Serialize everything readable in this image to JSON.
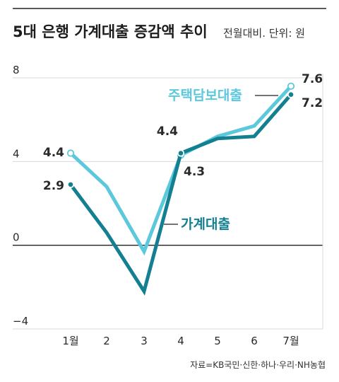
{
  "header": {
    "title": "5대 은행 가계대출 증감액 추이",
    "subtitle": "전월대비. 단위: 원"
  },
  "source": "자료=KB국민·신한·하나·우리·NH농협",
  "colors": {
    "mortgage": "#5cc8dc",
    "household": "#137f91",
    "axis": "#222222",
    "grid": "#d8d8d8"
  },
  "chart_data": {
    "type": "line",
    "title": "5대 은행 가계대출 증감액 추이",
    "subtitle": "전월대비. 단위: 원",
    "categories": [
      "1월",
      "2",
      "3",
      "4",
      "5",
      "6",
      "7월"
    ],
    "ylim": [
      -4,
      8
    ],
    "yticks": [
      8,
      4,
      0,
      -4
    ],
    "ytick_labels": [
      "8",
      "4",
      "0",
      "−4"
    ],
    "grid": true,
    "series": [
      {
        "name": "주택담보대출",
        "values": [
          4.4,
          2.8,
          -0.3,
          4.3,
          5.2,
          5.7,
          7.6
        ],
        "labels": {
          "0": "4.4",
          "3": "4.3",
          "6": "7.6"
        }
      },
      {
        "name": "가계대출",
        "values": [
          2.9,
          0.6,
          -2.2,
          4.4,
          5.1,
          5.2,
          7.2
        ],
        "labels": {
          "0": "2.9",
          "3": "4.4",
          "6": "7.2"
        }
      }
    ]
  }
}
